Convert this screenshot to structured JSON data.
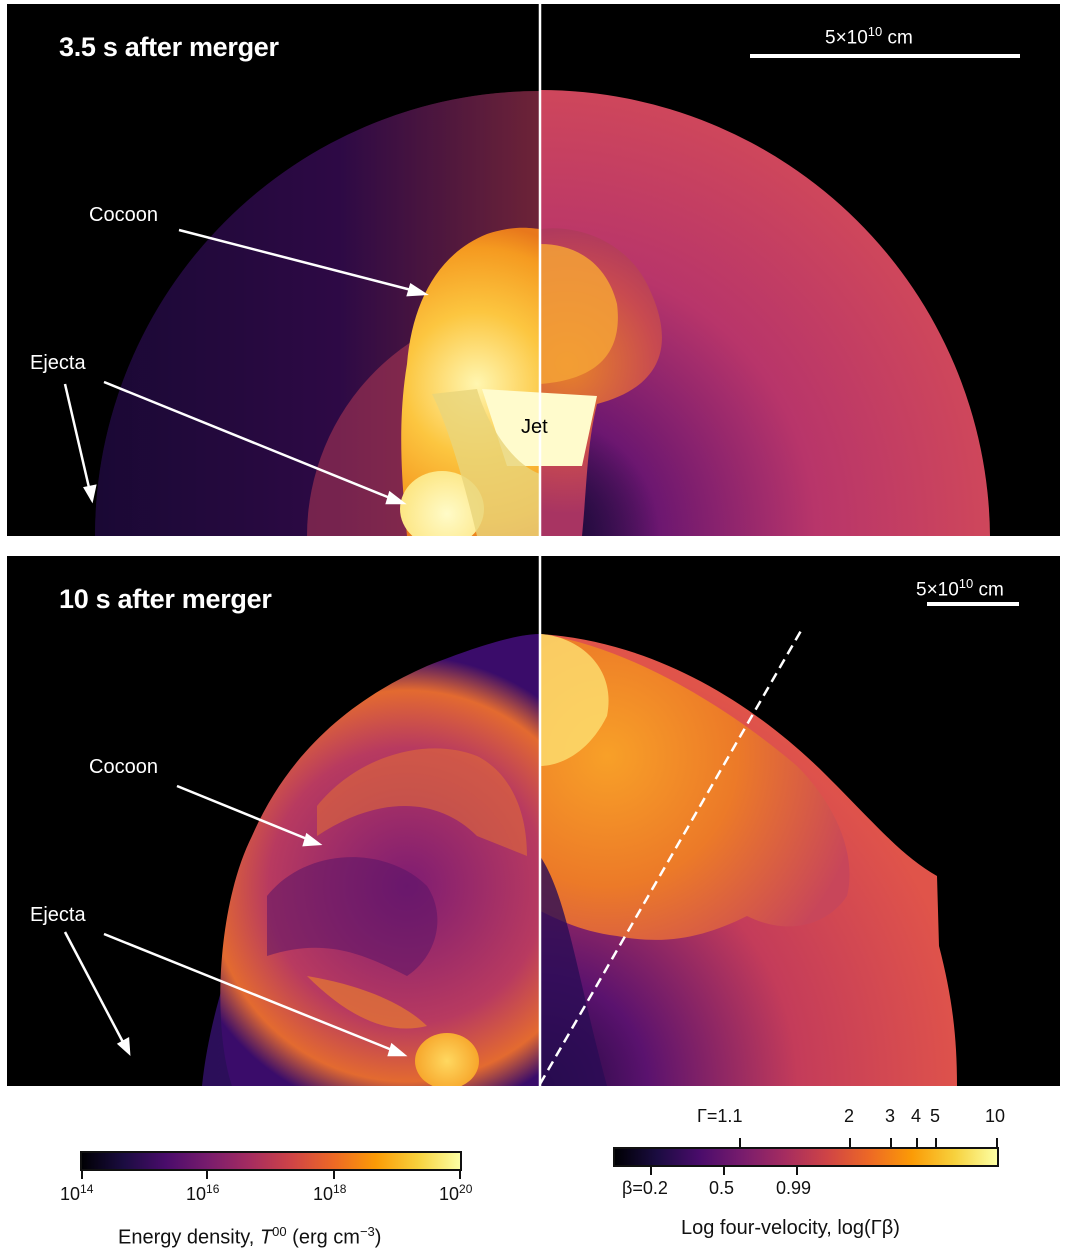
{
  "panels": [
    {
      "title": "3.5 s after merger",
      "scale_bar": {
        "value": "5×10",
        "exponent": "10",
        "unit": " cm"
      },
      "labels": {
        "cocoon": "Cocoon",
        "ejecta": "Ejecta",
        "jet": "Jet"
      }
    },
    {
      "title": "10 s after merger",
      "scale_bar": {
        "value": "5×10",
        "exponent": "10",
        "unit": " cm"
      },
      "labels": {
        "cocoon": "Cocoon",
        "ejecta": "Ejecta"
      }
    }
  ],
  "colorbars": {
    "energy": {
      "title_pre": "Energy density, ",
      "title_sym": "T",
      "title_sup": "00",
      "title_post": " (erg cm",
      "title_unit_sup": "−3",
      "title_close": ")",
      "ticks": [
        {
          "base": "10",
          "exp": "14"
        },
        {
          "base": "10",
          "exp": "16"
        },
        {
          "base": "10",
          "exp": "18"
        },
        {
          "base": "10",
          "exp": "20"
        }
      ]
    },
    "velocity": {
      "title": "Log four-velocity, log(Γβ)",
      "gamma_ticks": [
        "Γ=1.1",
        "2",
        "3",
        "4",
        "5",
        "10"
      ],
      "beta_ticks": [
        "β=0.2",
        "0.5",
        "0.99"
      ]
    }
  },
  "colors": {
    "background": "#000000",
    "cmap": [
      "#000004",
      "#1b0c41",
      "#4a0c6b",
      "#781c6d",
      "#a52c60",
      "#cf4446",
      "#ed6925",
      "#fb9b06",
      "#f7d13d",
      "#fcffa4"
    ]
  }
}
